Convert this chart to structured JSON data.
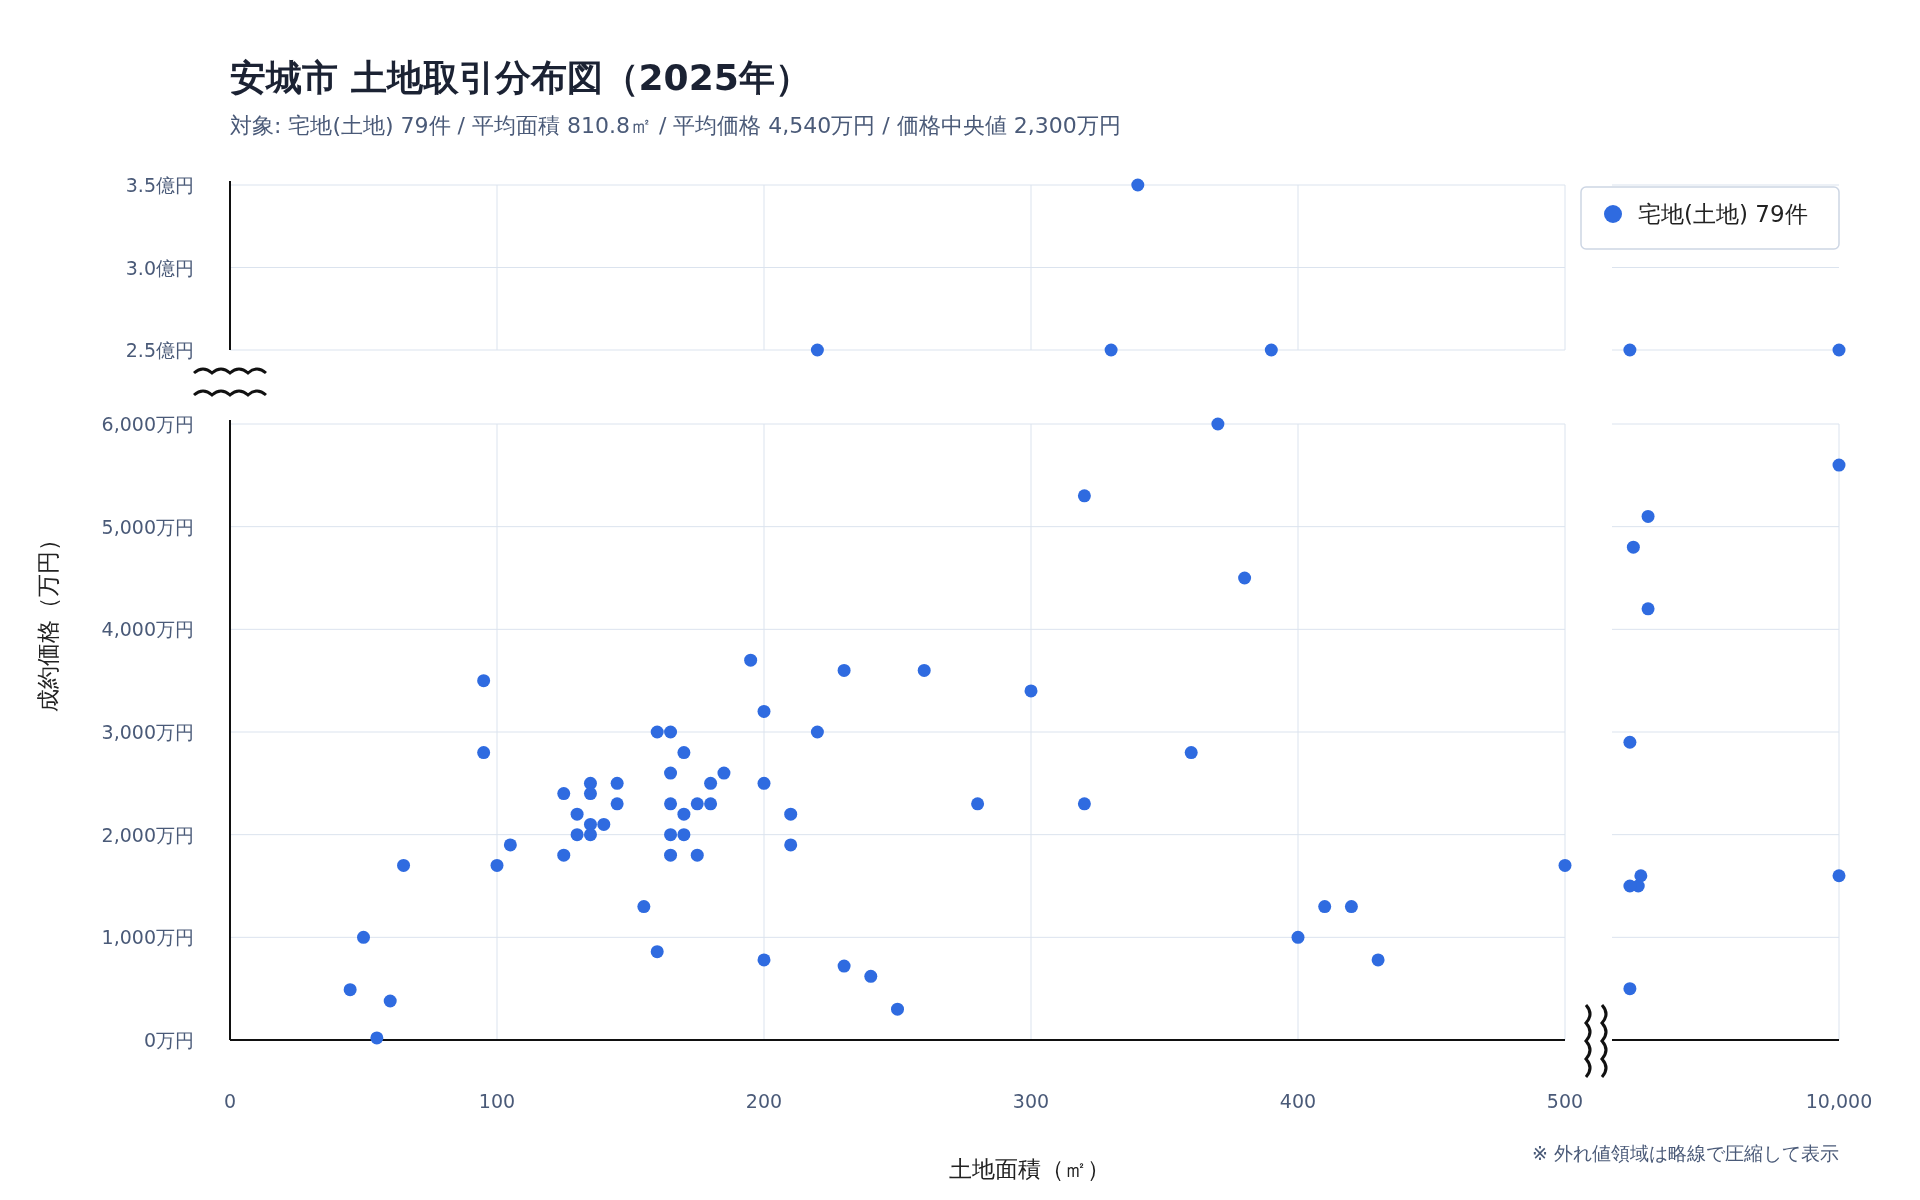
{
  "chart_data": [
    {
      "type": "scatter",
      "title": "安城市 土地取引分布図（2025年）",
      "subtitle": "対象: 宅地(土地) 79件 / 平均面積 810.8㎡ / 平均価格 4,540万円 / 価格中央値 2,300万円",
      "xlim": [
        0,
        500
      ],
      "ylim": [
        2.5,
        3.5
      ],
      "xticks": [
        0,
        100,
        200,
        300,
        400,
        500
      ],
      "yticks": [
        {
          "value": 2.5,
          "label": "2.5億円"
        },
        {
          "value": 3.0,
          "label": "3.0億円"
        },
        {
          "value": 3.5,
          "label": "3.5億円"
        }
      ],
      "grid": true,
      "tick_labels": "y",
      "marker": "circle",
      "series": [
        {
          "color": "#2f6be0",
          "x": [
            220,
            330,
            340,
            390
          ],
          "values": [
            2.5,
            2.5,
            3.5,
            2.5
          ]
        }
      ]
    },
    {
      "type": "scatter",
      "xlim": [
        500,
        10000
      ],
      "ylim": [
        2.5,
        3.5
      ],
      "yticks": [
        2.5,
        3,
        3.5
      ],
      "grid": "y",
      "tick_labels": false,
      "marker": "circle",
      "legend": "top right",
      "series": [
        {
          "name": "宅地(土地) 79件",
          "color": "#2f6be0",
          "x": [
            2750,
            10000
          ],
          "values": [
            2.5,
            2.5
          ]
        }
      ]
    },
    {
      "type": "scatter",
      "xlabel": "土地面積（㎡）",
      "ylabel": "成約価格（万円）",
      "xlim": [
        0,
        500
      ],
      "ylim": [
        0,
        6000
      ],
      "xticks": [
        0,
        100,
        200,
        300,
        400,
        {
          "value": 500,
          "label": null
        }
      ],
      "yticks": [
        {
          "value": 0,
          "label": "0万円"
        },
        {
          "value": 1000,
          "label": "1,000万円"
        },
        {
          "value": 2000,
          "label": "2,000万円"
        },
        {
          "value": 3000,
          "label": "3,000万円"
        },
        {
          "value": 4000,
          "label": "4,000万円"
        },
        {
          "value": 5000,
          "label": "5,000万円"
        },
        {
          "value": 6000,
          "label": "6,000万円"
        }
      ],
      "grid": true,
      "marker": "circle",
      "series": [
        {
          "color": "#2f6be0",
          "x": [
            45,
            50,
            60,
            55,
            65,
            95,
            95,
            100,
            105,
            125,
            125,
            130,
            130,
            135,
            135,
            135,
            135,
            140,
            145,
            145,
            155,
            160,
            160,
            165,
            165,
            165,
            165,
            165,
            170,
            170,
            170,
            175,
            175,
            180,
            180,
            185,
            195,
            200,
            200,
            200,
            210,
            210,
            220,
            230,
            230,
            240,
            250,
            260,
            280,
            300,
            320,
            320,
            360,
            370,
            380,
            400,
            410,
            420,
            430,
            500
          ],
          "values": [
            490,
            1000,
            380,
            20,
            1700,
            3500,
            2800,
            1700,
            1900,
            2400,
            1800,
            2200,
            2000,
            2500,
            2400,
            2100,
            2000,
            2100,
            2500,
            2300,
            1300,
            3000,
            860,
            3000,
            2600,
            2300,
            2000,
            1800,
            2800,
            2200,
            2000,
            2300,
            1800,
            2500,
            2300,
            2600,
            3700,
            3200,
            2500,
            780,
            2200,
            1900,
            3000,
            3600,
            720,
            620,
            300,
            3600,
            2300,
            3400,
            5300,
            2300,
            2800,
            6000,
            4500,
            1000,
            1300,
            1300,
            780,
            1700
          ]
        }
      ]
    },
    {
      "type": "scatter",
      "annotations": [
        "※ 外れ値領域は略線で圧縮して表示"
      ],
      "xlim": [
        500,
        10000
      ],
      "ylim": [
        0,
        6000
      ],
      "xticks": [
        500,
        {
          "value": 10000,
          "label": "10,000"
        }
      ],
      "yticks": [
        0,
        1000,
        2000,
        3000,
        4000,
        5000,
        6000
      ],
      "grid": true,
      "tick_labels": "x",
      "marker": "circle",
      "series": [
        {
          "color": "#2f6be0",
          "x": [
            2750,
            2870,
            3380,
            3380,
            3130,
            3040,
            2750,
            2750,
            10000,
            10000
          ],
          "values": [
            2900,
            4800,
            5100,
            4200,
            1600,
            1500,
            1500,
            500,
            5600,
            1600
          ]
        }
      ]
    }
  ]
}
